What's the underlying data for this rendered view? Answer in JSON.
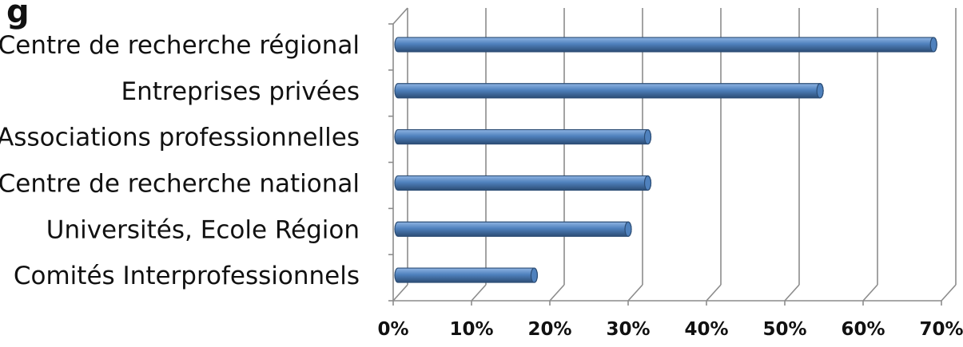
{
  "title_fragment": "g",
  "chart_data": {
    "type": "bar",
    "orientation": "horizontal",
    "style": "3d-cylinder",
    "categories": [
      "Centre de recherche régional",
      "Entreprises privées",
      "Associations professionnelles",
      "Centre de recherche national",
      "Universités, Ecole Région",
      "Comités Interprofessionnels"
    ],
    "values": [
      69,
      54.5,
      32.5,
      32.5,
      30,
      18
    ],
    "xlim": [
      0,
      70
    ],
    "xticks": [
      0,
      10,
      20,
      30,
      40,
      50,
      60,
      70
    ],
    "xtick_labels": [
      "0%",
      "10%",
      "20%",
      "30%",
      "40%",
      "50%",
      "60%",
      "70%"
    ],
    "grid": true,
    "legend": "none",
    "colors": {
      "bar_light": "#8fb4e3",
      "bar_main": "#4f81bd",
      "bar_dark": "#2c4d75",
      "grid": "#8c8c8c",
      "text": "#111111"
    }
  }
}
